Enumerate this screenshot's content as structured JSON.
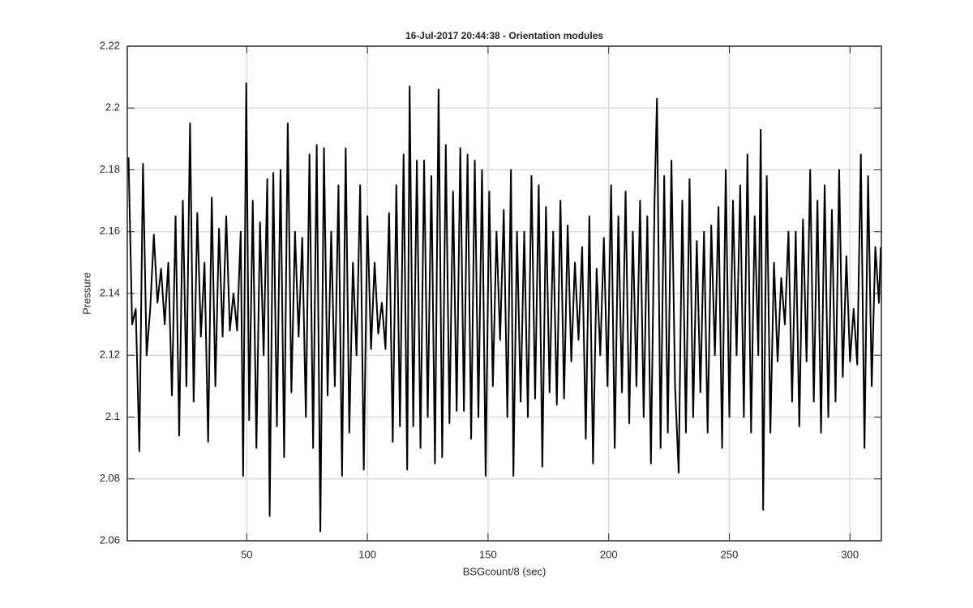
{
  "chart_data": {
    "type": "line",
    "title": "16-Jul-2017 20:44:38 - Orientation modules",
    "x_label": "BSGcount/8 (sec)",
    "y_label": "Pressure",
    "xlim": [
      0.5,
      313
    ],
    "ylim": [
      2.06,
      2.22
    ],
    "xticks": [
      50,
      100,
      150,
      200,
      250,
      300
    ],
    "yticks": [
      2.06,
      2.08,
      2.1,
      2.12,
      2.14,
      2.16,
      2.18,
      2.2,
      2.22
    ],
    "grid": true,
    "x": [
      1,
      2.5,
      4,
      5.5,
      7,
      8.5,
      10,
      11.5,
      13,
      14.5,
      16,
      17.5,
      19,
      20.5,
      22,
      23.5,
      25,
      26.5,
      28,
      29.5,
      31,
      32.5,
      34,
      35.5,
      37,
      38.5,
      40,
      41.5,
      43,
      44.5,
      46,
      47.5,
      48.5,
      49.8,
      51,
      52.5,
      54,
      55.5,
      57,
      58.5,
      59.5,
      61,
      62.5,
      64,
      65.5,
      67,
      68.5,
      70,
      71.5,
      73,
      74.5,
      76,
      77.5,
      79,
      80.5,
      82,
      83.5,
      85,
      86.5,
      88,
      89.5,
      91,
      92.5,
      94,
      95.5,
      97,
      98.5,
      100,
      101.5,
      103,
      104.5,
      106,
      107.5,
      109,
      110.5,
      112,
      113.5,
      115,
      116.5,
      117.5,
      119,
      120.5,
      122,
      123.5,
      125,
      126.5,
      128,
      129.5,
      131,
      132.5,
      134,
      135.5,
      137,
      138.5,
      140,
      141.5,
      143,
      144.5,
      146,
      147.5,
      149,
      150.5,
      152,
      153.5,
      155,
      156.5,
      158,
      159.5,
      160.5,
      162,
      163.5,
      165,
      166.5,
      168,
      169.5,
      171,
      172.5,
      174,
      175.5,
      177,
      178.5,
      180,
      181.5,
      183,
      184.5,
      186,
      187.5,
      189,
      190.5,
      192,
      193.5,
      195,
      196.5,
      198,
      199.5,
      201,
      202.5,
      204,
      205.5,
      207,
      208.5,
      210,
      211.5,
      213,
      214.5,
      216,
      217.5,
      219,
      220,
      221.5,
      223,
      224.5,
      226,
      227.5,
      229,
      230.5,
      232,
      233.5,
      235,
      236.5,
      238,
      239.5,
      241,
      242.5,
      244,
      245.5,
      247,
      248.5,
      250,
      251.5,
      253,
      254.5,
      256,
      257.5,
      259,
      260.5,
      262,
      263,
      264,
      265.5,
      267,
      268.5,
      270,
      271.5,
      273,
      274.5,
      276,
      277.5,
      279,
      280.5,
      282,
      283.5,
      285,
      286.5,
      288,
      289.5,
      291,
      292.5,
      294,
      295.5,
      297,
      298.5,
      300,
      301.5,
      303,
      304.5,
      306,
      307.5,
      309,
      310.5,
      312,
      312.75
    ],
    "series": [
      {
        "color": "#000000",
        "values": [
          2.184,
          2.13,
          2.135,
          2.089,
          2.182,
          2.12,
          2.135,
          2.159,
          2.137,
          2.148,
          2.13,
          2.15,
          2.107,
          2.165,
          2.094,
          2.17,
          2.11,
          2.195,
          2.105,
          2.166,
          2.126,
          2.15,
          2.092,
          2.171,
          2.11,
          2.161,
          2.126,
          2.165,
          2.128,
          2.14,
          2.128,
          2.16,
          2.081,
          2.208,
          2.099,
          2.17,
          2.09,
          2.163,
          2.12,
          2.177,
          2.068,
          2.179,
          2.097,
          2.18,
          2.087,
          2.195,
          2.108,
          2.16,
          2.126,
          2.158,
          2.1,
          2.185,
          2.09,
          2.188,
          2.063,
          2.187,
          2.107,
          2.16,
          2.11,
          2.175,
          2.081,
          2.187,
          2.095,
          2.15,
          2.12,
          2.175,
          2.083,
          2.165,
          2.122,
          2.15,
          2.127,
          2.137,
          2.122,
          2.166,
          2.092,
          2.175,
          2.097,
          2.185,
          2.083,
          2.207,
          2.097,
          2.183,
          2.09,
          2.183,
          2.1,
          2.178,
          2.085,
          2.206,
          2.087,
          2.188,
          2.098,
          2.173,
          2.102,
          2.187,
          2.102,
          2.185,
          2.093,
          2.183,
          2.1,
          2.18,
          2.081,
          2.173,
          2.11,
          2.16,
          2.125,
          2.167,
          2.1,
          2.18,
          2.081,
          2.16,
          2.105,
          2.16,
          2.1,
          2.178,
          2.106,
          2.175,
          2.084,
          2.168,
          2.108,
          2.16,
          2.104,
          2.17,
          2.106,
          2.162,
          2.118,
          2.15,
          2.125,
          2.155,
          2.093,
          2.165,
          2.085,
          2.148,
          2.12,
          2.158,
          2.11,
          2.175,
          2.09,
          2.165,
          2.108,
          2.173,
          2.098,
          2.16,
          2.11,
          2.17,
          2.1,
          2.165,
          2.085,
          2.17,
          2.203,
          2.09,
          2.178,
          2.095,
          2.183,
          2.11,
          2.082,
          2.17,
          2.095,
          2.177,
          2.1,
          2.157,
          2.108,
          2.16,
          2.095,
          2.162,
          2.12,
          2.168,
          2.09,
          2.18,
          2.1,
          2.17,
          2.12,
          2.175,
          2.1,
          2.185,
          2.095,
          2.165,
          2.12,
          2.193,
          2.07,
          2.178,
          2.095,
          2.15,
          2.118,
          2.145,
          2.13,
          2.16,
          2.105,
          2.16,
          2.097,
          2.164,
          2.118,
          2.18,
          2.105,
          2.17,
          2.095,
          2.175,
          2.1,
          2.167,
          2.105,
          2.18,
          2.113,
          2.152,
          2.118,
          2.135,
          2.117,
          2.185,
          2.09,
          2.178,
          2.11,
          2.155,
          2.137,
          2.155
        ]
      }
    ]
  }
}
